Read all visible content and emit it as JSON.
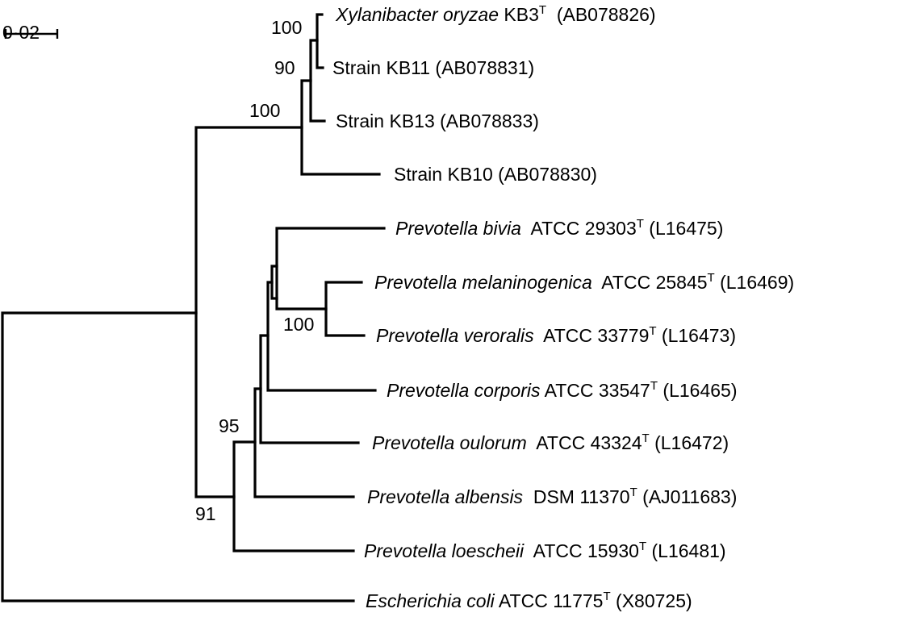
{
  "scale_bar": {
    "label": "0·02"
  },
  "bootstrap": {
    "xylanibacter_kb3_kb11": "100",
    "xylanibacter_kb13": "90",
    "xylanibacter_clade": "100",
    "bivia_veroralis_pair": "100",
    "prevotella_inner": "95",
    "prevotella_clade": "91"
  },
  "taxa": [
    {
      "italic": "Xylanibacter oryzae",
      "roman": " KB3",
      "sup": "T",
      "accession": "  (AB078826)"
    },
    {
      "italic": "",
      "roman": "Strain KB11",
      "sup": "",
      "accession": " (AB078831)"
    },
    {
      "italic": "",
      "roman": "Strain KB13",
      "sup": "",
      "accession": " (AB078833)"
    },
    {
      "italic": "",
      "roman": "Strain KB10",
      "sup": "",
      "accession": " (AB078830)"
    },
    {
      "italic": "Prevotella bivia",
      "roman": "  ATCC 29303",
      "sup": "T",
      "accession": " (L16475)"
    },
    {
      "italic": "Prevotella melaninogenica",
      "roman": "  ATCC 25845",
      "sup": "T",
      "accession": " (L16469)"
    },
    {
      "italic": "Prevotella veroralis",
      "roman": "  ATCC 33779",
      "sup": "T",
      "accession": " (L16473)"
    },
    {
      "italic": "Prevotella corporis",
      "roman": " ATCC 33547",
      "sup": "T",
      "accession": " (L16465)"
    },
    {
      "italic": "Prevotella oulorum",
      "roman": "  ATCC 43324",
      "sup": "T",
      "accession": " (L16472)"
    },
    {
      "italic": "Prevotella albensis",
      "roman": "  DSM 11370",
      "sup": "T",
      "accession": " (AJ011683)"
    },
    {
      "italic": "Prevotella loescheii",
      "roman": "  ATCC 15930",
      "sup": "T",
      "accession": " (L16481)"
    },
    {
      "italic": "Escherichia coli",
      "roman": " ATCC 11775",
      "sup": "T",
      "accession": " (X80725)"
    }
  ]
}
